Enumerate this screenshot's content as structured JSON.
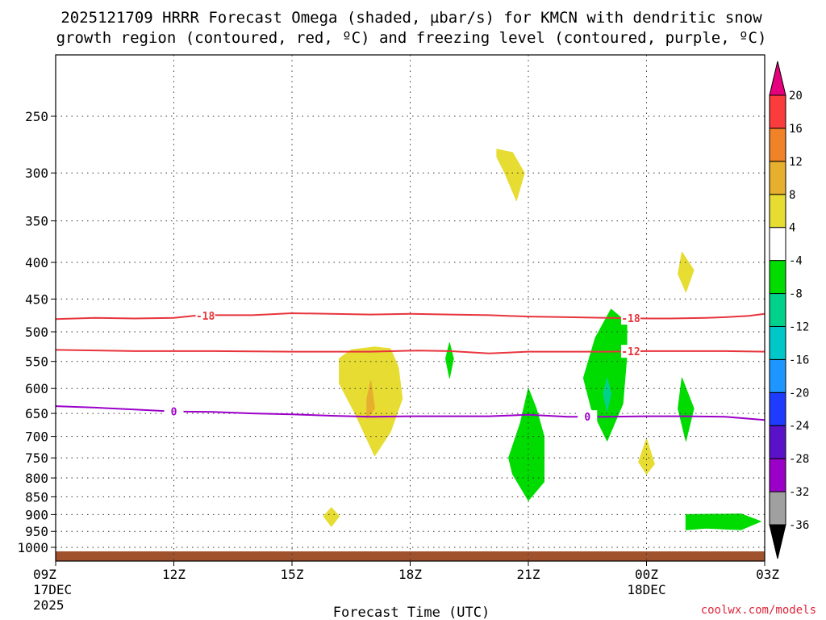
{
  "chart_data": {
    "type": "contour",
    "title": "2025121709 HRRR Forecast Omega (shaded, µbar/s) for KMCN with dendritic snow",
    "title_line2": "growth region (contoured, red, ºC) and freezing level (contoured, purple, ºC)",
    "xlabel": "Forecast Time (UTC)",
    "credit": "coolwx.com/models",
    "x_ticks": [
      {
        "hour": 0,
        "label": "09Z",
        "sub1": "17DEC",
        "sub2": "2025"
      },
      {
        "hour": 3,
        "label": "12Z",
        "sub1": "",
        "sub2": ""
      },
      {
        "hour": 6,
        "label": "15Z",
        "sub1": "",
        "sub2": ""
      },
      {
        "hour": 9,
        "label": "18Z",
        "sub1": "",
        "sub2": ""
      },
      {
        "hour": 12,
        "label": "21Z",
        "sub1": "",
        "sub2": ""
      },
      {
        "hour": 15,
        "label": "00Z",
        "sub1": "18DEC",
        "sub2": ""
      },
      {
        "hour": 18,
        "label": "03Z",
        "sub1": "",
        "sub2": ""
      }
    ],
    "x_range_hours": [
      0,
      18
    ],
    "y_ticks_hpa": [
      250,
      300,
      350,
      400,
      450,
      500,
      550,
      600,
      650,
      700,
      750,
      800,
      850,
      900,
      950,
      1000
    ],
    "y_range_hpa": [
      200,
      1025
    ],
    "y_scale": "log-pressure",
    "surface_pressure_hpa": 1013,
    "colorbar": {
      "levels": [
        -36,
        -32,
        -28,
        -24,
        -20,
        -16,
        -12,
        -8,
        -4,
        4,
        8,
        12,
        16,
        20
      ],
      "colors": [
        "#000000",
        "#a0a0a0",
        "#9b00c8",
        "#5a12c8",
        "#1e3cff",
        "#1e96ff",
        "#00c8c8",
        "#00d28c",
        "#00dc00",
        "#ffffff",
        "#e6dc32",
        "#e6af2d",
        "#f08228",
        "#fa3c3c",
        "#e6007d"
      ]
    },
    "contours": [
      {
        "name": "-18",
        "label": "-18",
        "color": "#e8343c",
        "points": [
          [
            0,
            480
          ],
          [
            1,
            478
          ],
          [
            2,
            479
          ],
          [
            3,
            478
          ],
          [
            3.5,
            475
          ],
          [
            4,
            474
          ],
          [
            5,
            474
          ],
          [
            6,
            471
          ],
          [
            7,
            472
          ],
          [
            8,
            473
          ],
          [
            9,
            472
          ],
          [
            10,
            473
          ],
          [
            11,
            474
          ],
          [
            12,
            476
          ],
          [
            13,
            477
          ],
          [
            14,
            478
          ],
          [
            15,
            479
          ],
          [
            15.6,
            479
          ],
          [
            16.5,
            478
          ],
          [
            17,
            477
          ],
          [
            17.6,
            475
          ],
          [
            18,
            472
          ]
        ],
        "label_hours": [
          3.8,
          14.6
        ]
      },
      {
        "name": "-12",
        "label": "-12",
        "color": "#e8343c",
        "points": [
          [
            0,
            530
          ],
          [
            2,
            532
          ],
          [
            4,
            532
          ],
          [
            6,
            533
          ],
          [
            8,
            533
          ],
          [
            9.2,
            531
          ],
          [
            10,
            532
          ],
          [
            11,
            536
          ],
          [
            12,
            533
          ],
          [
            13,
            533
          ],
          [
            14,
            533
          ],
          [
            15,
            532
          ],
          [
            16,
            532
          ],
          [
            17,
            532
          ],
          [
            18,
            533
          ]
        ],
        "label_hours": [
          14.6
        ]
      },
      {
        "name": "0",
        "label": "0",
        "color": "#9b00c8",
        "points": [
          [
            0,
            635
          ],
          [
            1,
            638
          ],
          [
            2,
            642
          ],
          [
            3,
            646
          ],
          [
            4,
            647
          ],
          [
            5,
            650
          ],
          [
            6,
            652
          ],
          [
            7,
            655
          ],
          [
            8,
            657
          ],
          [
            9,
            656
          ],
          [
            10,
            656
          ],
          [
            11,
            656
          ],
          [
            12,
            653
          ],
          [
            13,
            657
          ],
          [
            14,
            657
          ],
          [
            15,
            656
          ],
          [
            16,
            656
          ],
          [
            17,
            657
          ],
          [
            18,
            664
          ]
        ],
        "label_hours": [
          3,
          13.5
        ]
      }
    ],
    "shaded_regions": [
      {
        "value_range": [
          4,
          8
        ],
        "color": "#e6dc32",
        "points": [
          [
            11.2,
            278
          ],
          [
            11.6,
            281
          ],
          [
            11.9,
            300
          ],
          [
            11.7,
            328
          ],
          [
            11.4,
            300
          ],
          [
            11.2,
            285
          ]
        ]
      },
      {
        "value_range": [
          4,
          8
        ],
        "color": "#e6dc32",
        "points": [
          [
            15.9,
            387
          ],
          [
            16.2,
            410
          ],
          [
            16.0,
            440
          ],
          [
            15.8,
            415
          ]
        ]
      },
      {
        "value_range": [
          4,
          8
        ],
        "color": "#e6dc32",
        "points": [
          [
            8.1,
            525
          ],
          [
            8.5,
            528
          ],
          [
            8.7,
            560
          ],
          [
            8.8,
            620
          ],
          [
            8.5,
            690
          ],
          [
            8.1,
            745
          ],
          [
            7.6,
            650
          ],
          [
            7.2,
            590
          ],
          [
            7.2,
            545
          ],
          [
            7.5,
            530
          ]
        ]
      },
      {
        "value_range": [
          8,
          12
        ],
        "color": "#e6af2d",
        "points": [
          [
            8.0,
            585
          ],
          [
            8.1,
            640
          ],
          [
            7.9,
            660
          ],
          [
            7.9,
            620
          ]
        ]
      },
      {
        "value_range": [
          -8,
          -4
        ],
        "color": "#00dc00",
        "points": [
          [
            10.0,
            518
          ],
          [
            10.1,
            545
          ],
          [
            10.0,
            580
          ],
          [
            9.9,
            545
          ]
        ]
      },
      {
        "value_range": [
          -8,
          -4
        ],
        "color": "#00dc00",
        "points": [
          [
            12.0,
            600
          ],
          [
            12.2,
            640
          ],
          [
            12.4,
            700
          ],
          [
            12.4,
            810
          ],
          [
            12.0,
            860
          ],
          [
            11.6,
            790
          ],
          [
            11.5,
            750
          ],
          [
            11.8,
            670
          ]
        ]
      },
      {
        "value_range": [
          -8,
          -4
        ],
        "color": "#00dc00",
        "points": [
          [
            14.1,
            465
          ],
          [
            14.5,
            485
          ],
          [
            14.5,
            540
          ],
          [
            14.4,
            630
          ],
          [
            14.0,
            710
          ],
          [
            13.6,
            640
          ],
          [
            13.4,
            580
          ],
          [
            13.7,
            510
          ]
        ]
      },
      {
        "value_range": [
          -12,
          -8
        ],
        "color": "#00d28c",
        "points": [
          [
            14.0,
            580
          ],
          [
            14.1,
            610
          ],
          [
            14.0,
            645
          ],
          [
            13.9,
            610
          ]
        ]
      },
      {
        "value_range": [
          -8,
          -4
        ],
        "color": "#00dc00",
        "points": [
          [
            15.9,
            580
          ],
          [
            16.2,
            640
          ],
          [
            16.0,
            710
          ],
          [
            15.8,
            640
          ]
        ]
      },
      {
        "value_range": [
          4,
          8
        ],
        "color": "#e6dc32",
        "points": [
          [
            15.0,
            705
          ],
          [
            15.2,
            765
          ],
          [
            15.0,
            790
          ],
          [
            14.8,
            760
          ]
        ]
      },
      {
        "value_range": [
          -8,
          -4
        ],
        "color": "#00dc00",
        "points": [
          [
            16.0,
            900
          ],
          [
            17.4,
            898
          ],
          [
            17.9,
            920
          ],
          [
            17.4,
            945
          ],
          [
            16.5,
            940
          ],
          [
            16.0,
            945
          ]
        ]
      },
      {
        "value_range": [
          4,
          8
        ],
        "color": "#e6dc32",
        "points": [
          [
            7.0,
            880
          ],
          [
            7.2,
            905
          ],
          [
            7.0,
            935
          ],
          [
            6.8,
            905
          ]
        ]
      }
    ]
  }
}
